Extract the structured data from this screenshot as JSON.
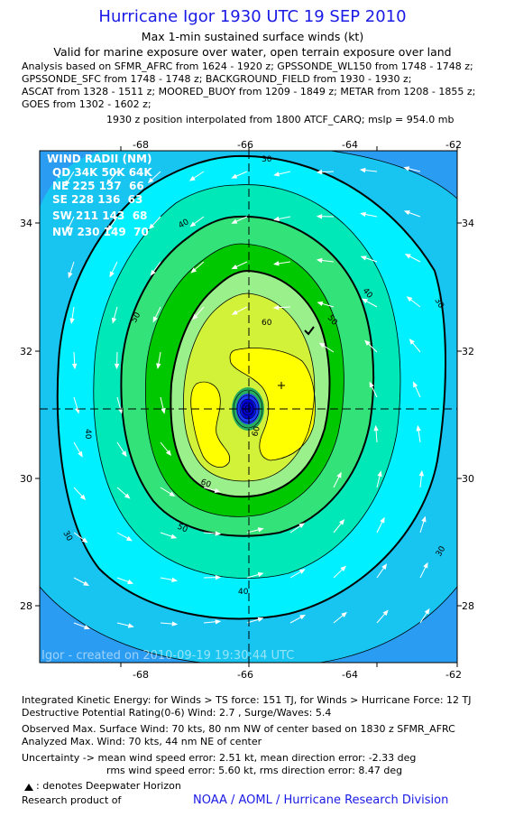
{
  "header": {
    "title": "Hurricane Igor 1930 UTC 19 SEP 2010",
    "subtitle": "Max 1-min sustained surface winds (kt)",
    "validity": "Valid for marine exposure over water, open terrain exposure over land",
    "analysis_lines": [
      "Analysis based on SFMR_AFRC from 1624 - 1920 z; GPSSONDE_WL150 from 1748 - 1748 z;",
      "GPSSONDE_SFC from 1748 - 1748 z; BACKGROUND_FIELD from 1930 - 1930 z;",
      "ASCAT from 1328 - 1511 z; MOORED_BUOY from 1209 - 1849 z; METAR from 1208 - 1855 z;",
      "GOES from 1302 - 1602 z;"
    ],
    "position_note": "1930 z position interpolated from 1800 ATCF_CARQ; mslp = 954.0 mb"
  },
  "map": {
    "x_ticks": [
      "-68",
      "-66",
      "-64",
      "-62"
    ],
    "y_ticks": [
      "34",
      "32",
      "30",
      "28"
    ],
    "x_range": [
      -69.3,
      -62
    ],
    "y_range": [
      27.0,
      35.4
    ],
    "center": {
      "lon": -65.9,
      "lat": 31.1
    },
    "contour_labels": [
      "30",
      "40",
      "50",
      "60",
      "30",
      "40",
      "50",
      "60",
      "30",
      "40",
      "50",
      "60",
      "40",
      "30"
    ],
    "levels_colors": {
      "bg": "#2a9cf2",
      "c30": "#18c4f0",
      "c40": "#00f0ff",
      "c45": "#00e8b8",
      "c50": "#34e27a",
      "c55": "#00c800",
      "c60": "#9af08a",
      "c65": "#d2f23a",
      "c70": "#ffff00",
      "eye_ring": "#1a3aff",
      "eye": "#0000cc"
    },
    "wind_radii": {
      "title": "WIND RADII (NM)",
      "header": "QD 34K 50K 64K",
      "rows": [
        "NE 225 137  66",
        "SE 228 136  63",
        "SW 211 143  68",
        "NW 230 149  70"
      ]
    },
    "watermark": "Igor - created on 2010-09-19 19:30:44 UTC"
  },
  "footer": {
    "ike": "Integrated Kinetic Energy:  for Winds > TS force: 151 TJ,  for Winds > Hurricane Force: 12 TJ",
    "dpr": "Destructive Potential Rating(0-6)   Wind: 2.7 , Surge/Waves: 5.4",
    "obs_max": "Observed Max. Surface Wind: 70 kts, 80 nm NW of center based on 1830 z SFMR_AFRC",
    "ana_max": "Analyzed Max. Wind: 70 kts, 44 nm NE of center",
    "uncert1": "Uncertainty -> mean wind speed error: 2.51 kt,   mean direction error:  -2.33 deg",
    "uncert2": "rms wind speed error: 5.60 kt,   rms direction error: 8.47 deg",
    "legend_note": ": denotes Deepwater Horizon",
    "research_label": "Research product of",
    "credit": "NOAA / AOML / Hurricane Research Division"
  }
}
